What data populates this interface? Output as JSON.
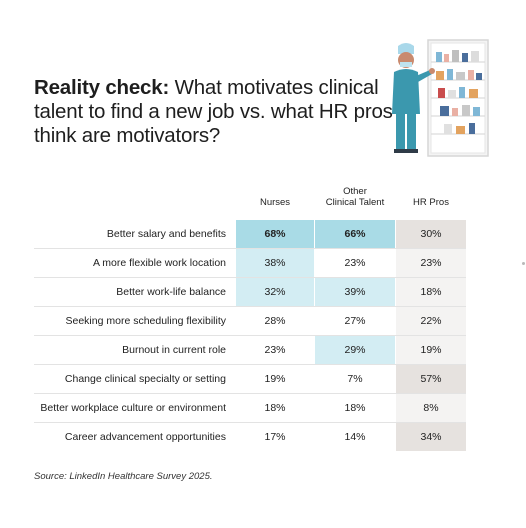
{
  "title": {
    "bold": "Reality check:",
    "rest": " What motivates clinical talent to find a new job vs. what HR pros think are motivators?"
  },
  "source": "Source: LinkedIn Healthcare Survey 2025.",
  "colors": {
    "strong": "#a9dbe6",
    "light": "#d3edf3",
    "hr_highlight": "#e6e2df",
    "hr_base": "#f4f3f2"
  },
  "chart_data": {
    "type": "table",
    "columns": [
      "Nurses",
      "Other Clinical Talent",
      "HR Pros"
    ],
    "rows": [
      {
        "label": "Better salary and benefits",
        "values": [
          "68%",
          "66%",
          "30%"
        ]
      },
      {
        "label": "A more flexible work location",
        "values": [
          "38%",
          "23%",
          "23%"
        ]
      },
      {
        "label": "Better work-life balance",
        "values": [
          "32%",
          "39%",
          "18%"
        ]
      },
      {
        "label": "Seeking more scheduling flexibility",
        "values": [
          "28%",
          "27%",
          "22%"
        ]
      },
      {
        "label": "Burnout in current role",
        "values": [
          "23%",
          "29%",
          "19%"
        ]
      },
      {
        "label": "Change clinical specialty or setting",
        "values": [
          "19%",
          "7%",
          "57%"
        ]
      },
      {
        "label": "Better workplace culture or environment",
        "values": [
          "18%",
          "18%",
          "8%"
        ]
      },
      {
        "label": "Career advancement opportunities",
        "values": [
          "17%",
          "14%",
          "34%"
        ]
      }
    ]
  }
}
